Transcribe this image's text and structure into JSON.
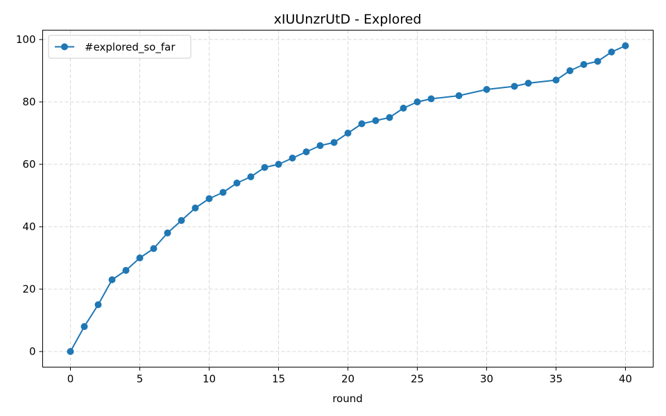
{
  "chart_data": {
    "type": "line",
    "title": "xIUUnzrUtD - Explored",
    "xlabel": "round",
    "ylabel": "",
    "xlim": [
      -2,
      42
    ],
    "ylim": [
      -5,
      103
    ],
    "x_ticks": [
      0,
      5,
      10,
      15,
      20,
      25,
      30,
      35,
      40
    ],
    "y_ticks": [
      0,
      20,
      40,
      60,
      80,
      100
    ],
    "grid": true,
    "legend_position": "upper-left",
    "series": [
      {
        "name": "#explored_so_far",
        "color": "#1f77b4",
        "marker": "circle",
        "x": [
          0,
          1,
          2,
          3,
          4,
          5,
          6,
          7,
          8,
          9,
          10,
          11,
          12,
          13,
          14,
          15,
          16,
          17,
          18,
          19,
          20,
          21,
          22,
          23,
          24,
          25,
          26,
          28,
          30,
          32,
          33,
          35,
          36,
          37,
          38,
          39,
          40
        ],
        "y": [
          0,
          8,
          15,
          23,
          26,
          30,
          33,
          38,
          42,
          46,
          49,
          51,
          54,
          56,
          59,
          60,
          62,
          64,
          66,
          67,
          70,
          73,
          74,
          75,
          78,
          80,
          81,
          82,
          84,
          85,
          86,
          87,
          90,
          92,
          93,
          96,
          98
        ]
      }
    ]
  }
}
